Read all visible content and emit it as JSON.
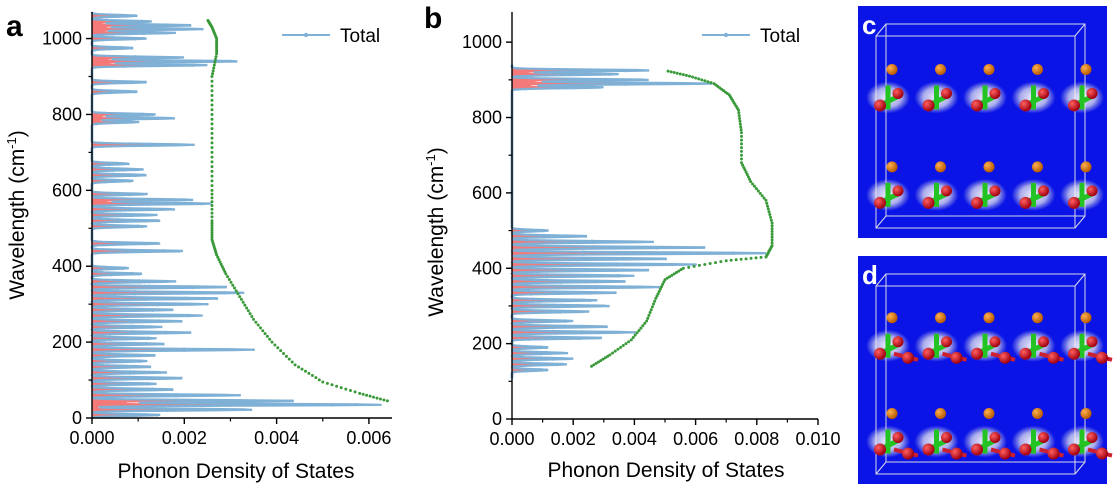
{
  "chart_data": [
    {
      "panel": "a",
      "type": "area",
      "xlabel": "Phonon Density of States",
      "ylabel": "Wavelength (cm",
      "ylabel_sup": "-1",
      "ylabel_close": ")",
      "xlim": [
        0,
        0.0065
      ],
      "ylim": [
        0,
        1070
      ],
      "xticks": [
        0,
        0.002,
        0.004,
        0.006
      ],
      "xtick_labels": [
        "0.000",
        "0.002",
        "0.004",
        "0.006"
      ],
      "yticks": [
        0,
        200,
        400,
        600,
        800,
        1000
      ],
      "ytick_labels": [
        "0",
        "200",
        "400",
        "600",
        "800",
        "1000"
      ],
      "legend": {
        "label": "Total",
        "position": "top-right"
      },
      "colors": {
        "total": "#7fb0d6",
        "fill": "#f47a7a",
        "envelope": "#3a9a3a"
      },
      "peaks": [
        {
          "y": 8,
          "v": 0.0015
        },
        {
          "y": 22,
          "v": 0.0035
        },
        {
          "y": 35,
          "v": 0.0063
        },
        {
          "y": 45,
          "v": 0.0045
        },
        {
          "y": 60,
          "v": 0.0032
        },
        {
          "y": 75,
          "v": 0.0018
        },
        {
          "y": 90,
          "v": 0.0014
        },
        {
          "y": 105,
          "v": 0.002
        },
        {
          "y": 120,
          "v": 0.0016
        },
        {
          "y": 135,
          "v": 0.0013
        },
        {
          "y": 150,
          "v": 0.0012
        },
        {
          "y": 165,
          "v": 0.0014
        },
        {
          "y": 180,
          "v": 0.0035
        },
        {
          "y": 195,
          "v": 0.0016
        },
        {
          "y": 210,
          "v": 0.0014
        },
        {
          "y": 225,
          "v": 0.0022
        },
        {
          "y": 240,
          "v": 0.0015
        },
        {
          "y": 255,
          "v": 0.002
        },
        {
          "y": 270,
          "v": 0.0024
        },
        {
          "y": 285,
          "v": 0.0018
        },
        {
          "y": 300,
          "v": 0.0025
        },
        {
          "y": 315,
          "v": 0.0028
        },
        {
          "y": 330,
          "v": 0.0033
        },
        {
          "y": 345,
          "v": 0.003
        },
        {
          "y": 360,
          "v": 0.0018
        },
        {
          "y": 380,
          "v": 0.0011
        },
        {
          "y": 395,
          "v": 0.0008
        },
        {
          "y": 440,
          "v": 0.002
        },
        {
          "y": 460,
          "v": 0.0015
        },
        {
          "y": 505,
          "v": 0.0012
        },
        {
          "y": 520,
          "v": 0.0015
        },
        {
          "y": 535,
          "v": 0.0014
        },
        {
          "y": 550,
          "v": 0.0018
        },
        {
          "y": 565,
          "v": 0.0026
        },
        {
          "y": 575,
          "v": 0.0022
        },
        {
          "y": 590,
          "v": 0.0012
        },
        {
          "y": 625,
          "v": 0.0009
        },
        {
          "y": 640,
          "v": 0.0012
        },
        {
          "y": 655,
          "v": 0.0011
        },
        {
          "y": 670,
          "v": 0.0008
        },
        {
          "y": 720,
          "v": 0.0022
        },
        {
          "y": 780,
          "v": 0.001
        },
        {
          "y": 790,
          "v": 0.0018
        },
        {
          "y": 800,
          "v": 0.0014
        },
        {
          "y": 860,
          "v": 0.001
        },
        {
          "y": 885,
          "v": 0.0012
        },
        {
          "y": 930,
          "v": 0.0025
        },
        {
          "y": 940,
          "v": 0.0032
        },
        {
          "y": 950,
          "v": 0.002
        },
        {
          "y": 975,
          "v": 0.0009
        },
        {
          "y": 1000,
          "v": 0.0012
        },
        {
          "y": 1015,
          "v": 0.0018
        },
        {
          "y": 1025,
          "v": 0.0024
        },
        {
          "y": 1035,
          "v": 0.0022
        },
        {
          "y": 1045,
          "v": 0.0013
        },
        {
          "y": 1060,
          "v": 0.001
        }
      ],
      "envelope": [
        {
          "x": 0.0064,
          "y": 45
        },
        {
          "x": 0.0058,
          "y": 65
        },
        {
          "x": 0.005,
          "y": 95
        },
        {
          "x": 0.0044,
          "y": 140
        },
        {
          "x": 0.0039,
          "y": 200
        },
        {
          "x": 0.0035,
          "y": 260
        },
        {
          "x": 0.0032,
          "y": 320
        },
        {
          "x": 0.0029,
          "y": 380
        },
        {
          "x": 0.0027,
          "y": 430
        },
        {
          "x": 0.0026,
          "y": 470
        },
        {
          "x": 0.0026,
          "y": 520
        },
        {
          "x": 0.0026,
          "y": 600
        },
        {
          "x": 0.0026,
          "y": 700
        },
        {
          "x": 0.0026,
          "y": 800
        },
        {
          "x": 0.0026,
          "y": 900
        },
        {
          "x": 0.0027,
          "y": 960
        },
        {
          "x": 0.0027,
          "y": 1000
        },
        {
          "x": 0.0026,
          "y": 1030
        },
        {
          "x": 0.0025,
          "y": 1050
        }
      ]
    },
    {
      "panel": "b",
      "type": "area",
      "xlabel": "Phonon Density of States",
      "ylabel": "Wavelength (cm",
      "ylabel_sup": "-1",
      "ylabel_close": ")",
      "xlim": [
        0,
        0.01
      ],
      "ylim": [
        0,
        1080
      ],
      "xticks": [
        0,
        0.002,
        0.004,
        0.006,
        0.008,
        0.01
      ],
      "xtick_labels": [
        "0.000",
        "0.002",
        "0.004",
        "0.006",
        "0.008",
        "0.010"
      ],
      "yticks": [
        0,
        200,
        400,
        600,
        800,
        1000
      ],
      "ytick_labels": [
        "0",
        "200",
        "400",
        "600",
        "800",
        "1000"
      ],
      "legend": {
        "label": "Total",
        "position": "top-right"
      },
      "colors": {
        "total": "#7fb0d6",
        "fill": "#f47a7a",
        "envelope": "#3a9a3a"
      },
      "peaks": [
        {
          "y": 130,
          "v": 0.0012
        },
        {
          "y": 145,
          "v": 0.0018
        },
        {
          "y": 160,
          "v": 0.002
        },
        {
          "y": 175,
          "v": 0.0018
        },
        {
          "y": 190,
          "v": 0.0012
        },
        {
          "y": 215,
          "v": 0.003
        },
        {
          "y": 230,
          "v": 0.004
        },
        {
          "y": 245,
          "v": 0.0032
        },
        {
          "y": 260,
          "v": 0.002
        },
        {
          "y": 285,
          "v": 0.0025
        },
        {
          "y": 300,
          "v": 0.0032
        },
        {
          "y": 315,
          "v": 0.0028
        },
        {
          "y": 335,
          "v": 0.0035
        },
        {
          "y": 350,
          "v": 0.0048
        },
        {
          "y": 365,
          "v": 0.0038
        },
        {
          "y": 380,
          "v": 0.004
        },
        {
          "y": 395,
          "v": 0.0046
        },
        {
          "y": 410,
          "v": 0.006
        },
        {
          "y": 425,
          "v": 0.0052
        },
        {
          "y": 440,
          "v": 0.0083
        },
        {
          "y": 455,
          "v": 0.0065
        },
        {
          "y": 470,
          "v": 0.0046
        },
        {
          "y": 485,
          "v": 0.0025
        },
        {
          "y": 500,
          "v": 0.0012
        },
        {
          "y": 880,
          "v": 0.003
        },
        {
          "y": 890,
          "v": 0.0065
        },
        {
          "y": 900,
          "v": 0.0045
        },
        {
          "y": 915,
          "v": 0.0035
        },
        {
          "y": 925,
          "v": 0.0045
        }
      ],
      "envelope": [
        {
          "x": 0.0026,
          "y": 140
        },
        {
          "x": 0.0032,
          "y": 170
        },
        {
          "x": 0.0039,
          "y": 210
        },
        {
          "x": 0.0044,
          "y": 260
        },
        {
          "x": 0.0047,
          "y": 320
        },
        {
          "x": 0.005,
          "y": 370
        },
        {
          "x": 0.0056,
          "y": 400
        },
        {
          "x": 0.007,
          "y": 420
        },
        {
          "x": 0.0083,
          "y": 430
        },
        {
          "x": 0.0085,
          "y": 460
        },
        {
          "x": 0.0085,
          "y": 520
        },
        {
          "x": 0.0083,
          "y": 580
        },
        {
          "x": 0.0078,
          "y": 630
        },
        {
          "x": 0.0075,
          "y": 680
        },
        {
          "x": 0.0075,
          "y": 760
        },
        {
          "x": 0.0074,
          "y": 820
        },
        {
          "x": 0.0071,
          "y": 860
        },
        {
          "x": 0.0066,
          "y": 890
        },
        {
          "x": 0.0058,
          "y": 910
        },
        {
          "x": 0.005,
          "y": 925
        }
      ]
    }
  ],
  "panels": {
    "a": "a",
    "b": "b",
    "c": "c",
    "d": "d"
  }
}
